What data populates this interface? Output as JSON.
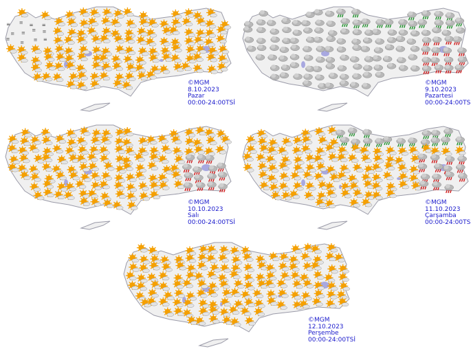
{
  "maps": [
    {
      "copyright": "©MGM",
      "date": "8.10.2023",
      "day": "Pazar",
      "period": "00:00-24:00TSİ",
      "weather": {
        "default": "partly-cloudy",
        "northwest": "fog",
        "north_coast": "partly-cloudy",
        "east": "partly-cloudy"
      }
    },
    {
      "copyright": "©MGM",
      "date": "9.10.2023",
      "day": "Pazartesi",
      "period": "00:00-24:00TSİ",
      "weather": {
        "default": "cloudy",
        "northwest": "cloudy",
        "north_coast": "rain-showers",
        "east": "thunderstorm-rain"
      }
    },
    {
      "copyright": "©MGM",
      "date": "10.10.2023",
      "day": "Salı",
      "period": "00:00-24:00TSİ",
      "weather": {
        "default": "partly-cloudy",
        "northwest": "partly-cloudy",
        "north_coast": "partly-cloudy",
        "east": "thunderstorm-rain"
      }
    },
    {
      "copyright": "©MGM",
      "date": "11.10.2023",
      "day": "Çarşamba",
      "period": "00:00-24:00TSİ",
      "weather": {
        "default": "partly-cloudy",
        "northwest": "partly-cloudy",
        "north_coast": "rain-showers",
        "east": "thunderstorm-rain"
      }
    },
    {
      "copyright": "©MGM",
      "date": "12.10.2023",
      "day": "Perşembe",
      "period": "00:00-24:00TSİ",
      "weather": {
        "default": "partly-cloudy",
        "northwest": "partly-cloudy",
        "north_coast": "partly-cloudy",
        "east": "partly-cloudy"
      }
    }
  ],
  "colors": {
    "land": "#f0f0f0",
    "border": "#9a9aa8",
    "lake": "#a8a8e0",
    "sun": "#f5a000",
    "cloud": "#b8b8b8",
    "rain_green": "#1e8f2a",
    "rain_red": "#d01818",
    "label": "#1a1acc"
  }
}
